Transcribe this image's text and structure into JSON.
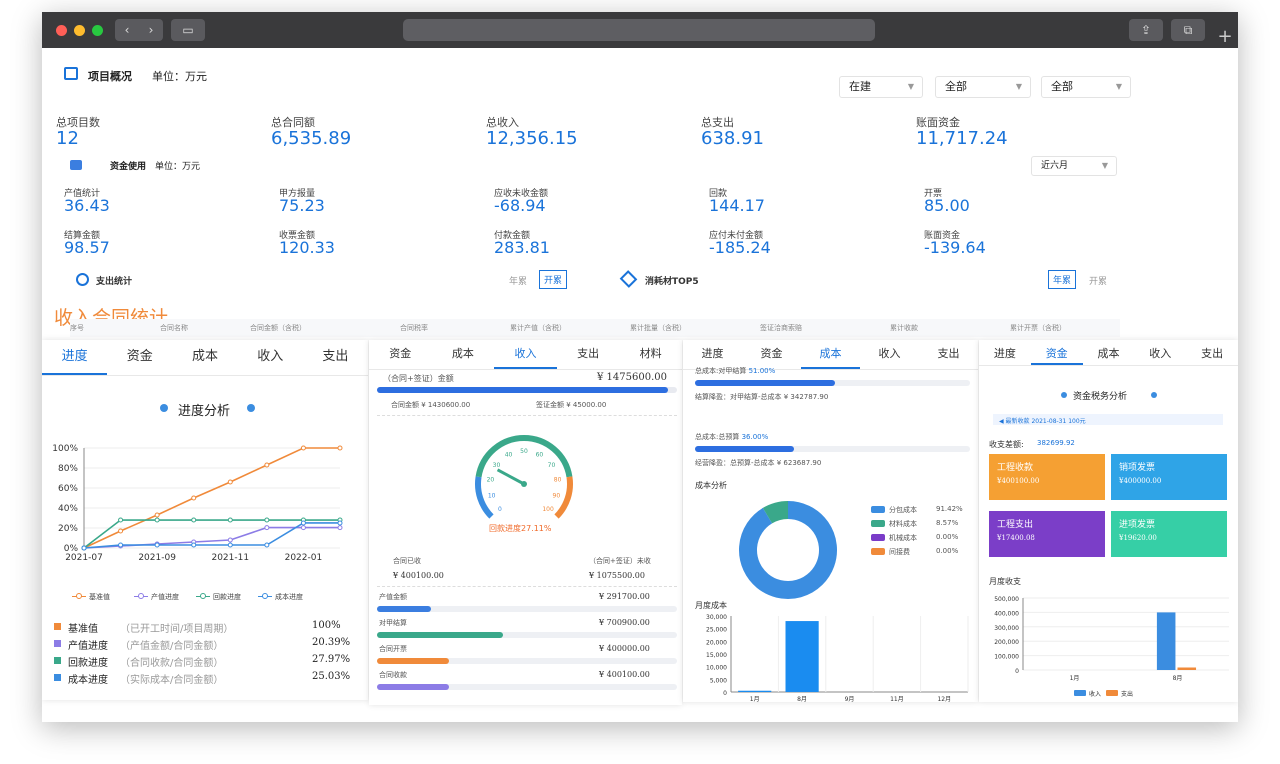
{
  "overview": {
    "title": "项目概况",
    "unit": "单位：万元",
    "filters": [
      "在建",
      "全部",
      "全部"
    ],
    "stats": [
      {
        "label": "总项目数",
        "value": "12"
      },
      {
        "label": "总合同额",
        "value": "6,535.89"
      },
      {
        "label": "总收入",
        "value": "12,356.15"
      },
      {
        "label": "总支出",
        "value": "638.91"
      },
      {
        "label": "账面资金",
        "value": "11,717.24"
      }
    ]
  },
  "funds": {
    "title": "资金使用",
    "unit": "单位：万元",
    "period": "近六月",
    "stats": [
      {
        "label": "产值统计",
        "value": "36.43"
      },
      {
        "label": "甲方报量",
        "value": "75.23"
      },
      {
        "label": "应收未收金额",
        "value": "-68.94"
      },
      {
        "label": "回款",
        "value": "144.17"
      },
      {
        "label": "开票",
        "value": "85.00"
      },
      {
        "label": "结算金额",
        "value": "98.57"
      },
      {
        "label": "收票金额",
        "value": "120.33"
      },
      {
        "label": "付款金额",
        "value": "283.81"
      },
      {
        "label": "应付未付金额",
        "value": "-185.24"
      },
      {
        "label": "账面资金",
        "value": "-139.64"
      }
    ]
  },
  "expense": {
    "title": "支出统计",
    "toggle": [
      "年累",
      "开累"
    ]
  },
  "material": {
    "title": "消耗材TOP5",
    "toggle": [
      "年累",
      "开累"
    ]
  },
  "income_contract": {
    "title": "收入合同统计",
    "columns": [
      "序号",
      "合同名称",
      "合同金额（含税）",
      "合同税率",
      "累计产值（含税）",
      "累计批量（含税）",
      "签证洽商索赔",
      "累计收款",
      "累计开票（含税）"
    ]
  },
  "p1": {
    "tabs": [
      "进度",
      "资金",
      "成本",
      "收入",
      "支出"
    ],
    "active": 0,
    "title": "进度分析",
    "chart_data": {
      "type": "line",
      "x": [
        "2021-07",
        "2021-08",
        "2021-09",
        "2021-10",
        "2021-11",
        "2021-12",
        "2022-01",
        "2022-02"
      ],
      "xticks": [
        "2021-07",
        "2021-09",
        "2021-11",
        "2022-01"
      ],
      "yticks": [
        "100%",
        "80%",
        "60%",
        "40%",
        "20%",
        "0%"
      ],
      "series": [
        {
          "name": "基准值",
          "color": "#f08a3a",
          "values": [
            0,
            17,
            33,
            50,
            66,
            83,
            100,
            100
          ]
        },
        {
          "name": "产值进度",
          "color": "#8c7ce6",
          "values": [
            0,
            2,
            4,
            6,
            8,
            20.39,
            20.39,
            20.39
          ]
        },
        {
          "name": "回款进度",
          "color": "#3aa88a",
          "values": [
            0,
            27.97,
            27.97,
            27.97,
            27.97,
            27.97,
            27.97,
            27.97
          ]
        },
        {
          "name": "成本进度",
          "color": "#3b8de0",
          "values": [
            0,
            3,
            3,
            3,
            3,
            3,
            25.03,
            25.03
          ]
        }
      ]
    },
    "rows": [
      {
        "name": "基准值",
        "note": "（已开工时间/项目周期）",
        "value": "100%",
        "color": "#f08a3a"
      },
      {
        "name": "产值进度",
        "note": "（产值金额/合同金额）",
        "value": "20.39%",
        "color": "#8c7ce6"
      },
      {
        "name": "回款进度",
        "note": "（合同收款/合同金额）",
        "value": "27.97%",
        "color": "#3aa88a"
      },
      {
        "name": "成本进度",
        "note": "（实际成本/合同金额）",
        "value": "25.03%",
        "color": "#3b8de0"
      }
    ]
  },
  "p2": {
    "tabs": [
      "资金",
      "成本",
      "收入",
      "支出",
      "材料"
    ],
    "active": 2,
    "contract_label": "（合同+签证）金额",
    "contract_value": "¥ 1475600.00",
    "contract_ratio": 0.97,
    "contract_amt": "合同金额 ¥ 1430600.00",
    "visa_amt": "签证金额 ¥ 45000.00",
    "gauge": {
      "label": "回款进度27.11%",
      "value": 27.11,
      "ticks": [
        "0",
        "10",
        "20",
        "30",
        "40",
        "50",
        "60",
        "70",
        "80",
        "90",
        "100"
      ]
    },
    "received_label": "合同已收",
    "received_value": "¥ 400100.00",
    "unreceived_label": "（合同+签证）未收",
    "unreceived_value": "¥ 1075500.00",
    "bars": [
      {
        "label": "产值金额",
        "value": "¥ 291700.00",
        "ratio": 0.18,
        "color": "#3b7ee0"
      },
      {
        "label": "对甲结算",
        "value": "¥ 700900.00",
        "ratio": 0.42,
        "color": "#3aa88a"
      },
      {
        "label": "合同开票",
        "value": "¥ 400000.00",
        "ratio": 0.24,
        "color": "#f08a3a"
      },
      {
        "label": "合同收款",
        "value": "¥ 400100.00",
        "ratio": 0.24,
        "color": "#8c7ce6"
      }
    ]
  },
  "p3": {
    "tabs": [
      "进度",
      "资金",
      "成本",
      "收入",
      "支出"
    ],
    "active": 2,
    "rows": [
      {
        "label": "总成本:对甲结算",
        "pct": "51.00%",
        "ratio": 0.51,
        "sub": "结算降盈：对甲结算-总成本 ¥ 342787.90"
      },
      {
        "label": "总成本:总预算",
        "pct": "36.00%",
        "ratio": 0.36,
        "sub": "经营降盈：总预算-总成本 ¥ 623687.90"
      }
    ],
    "analysis_title": "成本分析",
    "donut": {
      "type": "pie",
      "items": [
        {
          "name": "分包成本",
          "pct": "91.42%",
          "value": 91.42,
          "color": "#3b8de0"
        },
        {
          "name": "材料成本",
          "pct": "8.57%",
          "value": 8.57,
          "color": "#3aa88a"
        },
        {
          "name": "机械成本",
          "pct": "0.00%",
          "value": 0,
          "color": "#7a3cc8"
        },
        {
          "name": "间接费",
          "pct": "0.00%",
          "value": 0,
          "color": "#f08a3a"
        }
      ]
    },
    "monthly_title": "月度成本",
    "chart_data": {
      "type": "bar",
      "categories": [
        "1月",
        "8月",
        "9月",
        "11月",
        "12月"
      ],
      "values": [
        500,
        28000,
        0,
        0,
        0
      ],
      "yticks": [
        "30,000",
        "25,000",
        "20,000",
        "15,000",
        "10,000",
        "5,000",
        "0"
      ],
      "ylim": [
        0,
        30000
      ]
    }
  },
  "p4": {
    "tabs": [
      "进度",
      "资金",
      "成本",
      "收入",
      "支出"
    ],
    "active": 1,
    "title": "资金税务分析",
    "notice": "最新收款 2021-08-31 100元",
    "diff_label": "收支差额:",
    "diff_value": "382699.92",
    "tiles": [
      {
        "name": "工程收款",
        "value": "¥400100.00",
        "color": "#f5a033"
      },
      {
        "name": "销项发票",
        "value": "¥400000.00",
        "color": "#2fa4e7"
      },
      {
        "name": "工程支出",
        "value": "¥17400.08",
        "color": "#7b3ec8"
      },
      {
        "name": "进项发票",
        "value": "¥19620.00",
        "color": "#36cfa6"
      }
    ],
    "monthly_title": "月度收支",
    "chart_data": {
      "type": "bar",
      "categories": [
        "1月",
        "8月"
      ],
      "yticks": [
        "500,000",
        "400,000",
        "300,000",
        "200,000",
        "100,000",
        "0"
      ],
      "ylim": [
        0,
        500000
      ],
      "series": [
        {
          "name": "收入",
          "color": "#3b8de0",
          "values": [
            0,
            400000
          ]
        },
        {
          "name": "支出",
          "color": "#f08a3a",
          "values": [
            0,
            17400
          ]
        }
      ]
    }
  }
}
